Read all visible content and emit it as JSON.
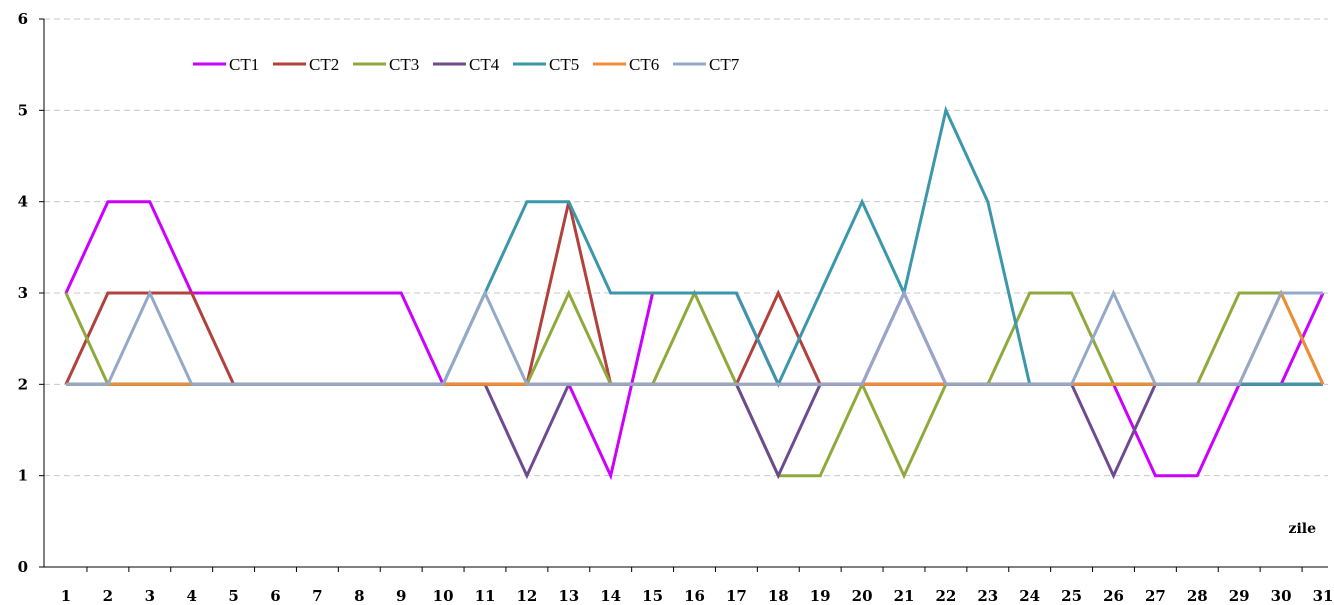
{
  "chart_data": {
    "type": "line",
    "title": "",
    "xlabel": "zile",
    "ylabel": "",
    "ylim": [
      0,
      6
    ],
    "y_ticks": [
      "0",
      "1",
      "2",
      "3",
      "4",
      "5",
      "6"
    ],
    "grid": "horizontal-dashed",
    "legend_position": "top-left",
    "x": [
      "1",
      "2",
      "3",
      "4",
      "5",
      "6",
      "7",
      "8",
      "9",
      "10",
      "11",
      "12",
      "13",
      "14",
      "15",
      "16",
      "17",
      "18",
      "19",
      "20",
      "21",
      "22",
      "23",
      "24",
      "25",
      "26",
      "27",
      "28",
      "29",
      "30",
      "31"
    ],
    "series": [
      {
        "name": "CT1",
        "color": "#cc00ff",
        "values": [
          3,
          4,
          4,
          3,
          3,
          3,
          3,
          3,
          3,
          2,
          2,
          2,
          2,
          1,
          3,
          3,
          3,
          2,
          2,
          2,
          3,
          2,
          2,
          2,
          2,
          2,
          1,
          1,
          2,
          2,
          3
        ]
      },
      {
        "name": "CT2",
        "color": "#b2403c",
        "values": [
          2,
          3,
          3,
          3,
          2,
          2,
          2,
          2,
          2,
          2,
          2,
          2,
          4,
          2,
          2,
          2,
          2,
          3,
          2,
          2,
          2,
          2,
          2,
          2,
          2,
          2,
          2,
          2,
          2,
          2,
          2
        ]
      },
      {
        "name": "CT3",
        "color": "#8faa3c",
        "values": [
          3,
          2,
          2,
          2,
          2,
          2,
          2,
          2,
          2,
          2,
          2,
          2,
          3,
          2,
          2,
          3,
          2,
          1,
          1,
          2,
          1,
          2,
          2,
          3,
          3,
          2,
          2,
          2,
          3,
          3,
          2
        ]
      },
      {
        "name": "CT4",
        "color": "#6e4b8e",
        "values": [
          2,
          2,
          2,
          2,
          2,
          2,
          2,
          2,
          2,
          2,
          2,
          1,
          2,
          2,
          2,
          2,
          2,
          1,
          2,
          2,
          2,
          2,
          2,
          2,
          2,
          1,
          2,
          2,
          2,
          2,
          2
        ]
      },
      {
        "name": "CT5",
        "color": "#3b97aa",
        "values": [
          2,
          2,
          2,
          2,
          2,
          2,
          2,
          2,
          2,
          2,
          3,
          4,
          4,
          3,
          3,
          3,
          3,
          2,
          3,
          4,
          3,
          5,
          4,
          2,
          2,
          2,
          2,
          2,
          2,
          2,
          2
        ]
      },
      {
        "name": "CT6",
        "color": "#f08c32",
        "values": [
          2,
          2,
          2,
          2,
          2,
          2,
          2,
          2,
          2,
          2,
          2,
          2,
          2,
          2,
          2,
          2,
          2,
          2,
          2,
          2,
          2,
          2,
          2,
          2,
          2,
          2,
          2,
          2,
          2,
          3,
          2
        ]
      },
      {
        "name": "CT7",
        "color": "#94a8c8",
        "values": [
          2,
          2,
          3,
          2,
          2,
          2,
          2,
          2,
          2,
          2,
          3,
          2,
          2,
          2,
          2,
          2,
          2,
          2,
          2,
          2,
          3,
          2,
          2,
          2,
          2,
          3,
          2,
          2,
          2,
          3,
          3
        ]
      }
    ]
  }
}
